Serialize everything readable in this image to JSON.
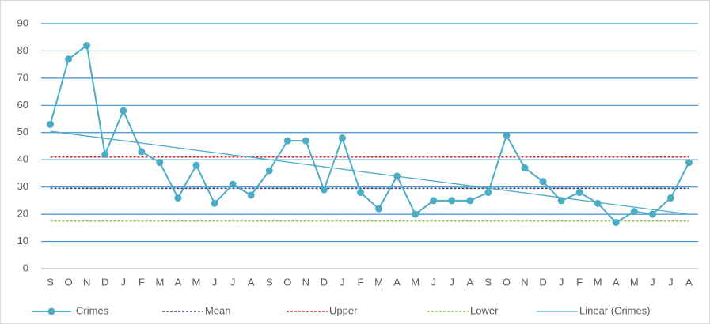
{
  "chart_data": {
    "type": "line",
    "categories": [
      "S",
      "O",
      "N",
      "D",
      "J",
      "F",
      "M",
      "A",
      "M",
      "J",
      "J",
      "A",
      "S",
      "O",
      "N",
      "D",
      "J",
      "F",
      "M",
      "A",
      "M",
      "J",
      "J",
      "A",
      "S",
      "O",
      "N",
      "D",
      "J",
      "F",
      "M",
      "A",
      "M",
      "J",
      "J",
      "A"
    ],
    "series": [
      {
        "name": "Crimes",
        "color": "#4bacc6",
        "values": [
          53,
          77,
          82,
          42,
          58,
          43,
          39,
          26,
          38,
          24,
          31,
          27,
          36,
          47,
          47,
          29,
          48,
          28,
          22,
          34,
          20,
          25,
          25,
          25,
          28,
          49,
          37,
          32,
          25,
          28,
          24,
          17,
          21,
          20,
          26,
          39
        ]
      }
    ],
    "reference_lines": [
      {
        "name": "Mean",
        "value": 29.5,
        "color": "#3c3f6e"
      },
      {
        "name": "Upper",
        "value": 41,
        "color": "#e0282e"
      },
      {
        "name": "Lower",
        "value": 17.5,
        "color": "#8cbf5a"
      }
    ],
    "trendline": {
      "name": "Linear (Crimes)",
      "start": 50.5,
      "end": 20,
      "color": "#4bacc6"
    },
    "ylim": [
      0,
      90
    ],
    "yticks": [
      0,
      10,
      20,
      30,
      40,
      50,
      60,
      70,
      80,
      90
    ],
    "grid": true,
    "grid_color": "#3f8fd0",
    "legend": "bottom"
  }
}
